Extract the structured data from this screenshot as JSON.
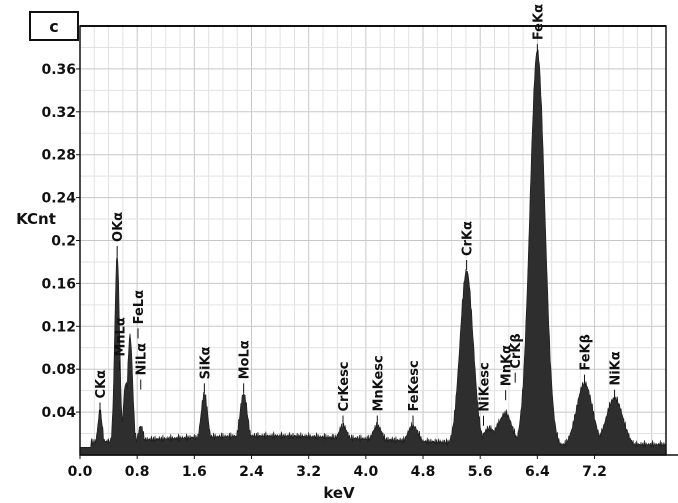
{
  "chart_data": {
    "type": "area",
    "panel_label": "c",
    "xlabel": "keV",
    "ylabel": "KCnt",
    "xlim": [
      0,
      8.2
    ],
    "ylim": [
      0,
      0.4
    ],
    "x_ticks": [
      "0.0",
      "0.8",
      "1.6",
      "2.4",
      "3.2",
      "4.0",
      "4.8",
      "5.6",
      "6.4",
      "7.2"
    ],
    "y_ticks": [
      "0.04",
      "0.08",
      "0.12",
      "0.16",
      "0.2",
      "0.24",
      "0.28",
      "0.32",
      "0.36"
    ],
    "grid": true,
    "series_color": "#2e2e2e",
    "peaks": [
      {
        "label": "CKα",
        "x": 0.28,
        "y": 0.034
      },
      {
        "label": "OKα",
        "x": 0.52,
        "y": 0.18
      },
      {
        "label": "FeLα",
        "x": 0.7,
        "y": 0.105
      },
      {
        "label": "MnLα",
        "x": 0.64,
        "y": 0.06
      },
      {
        "label": "NiLα",
        "x": 0.85,
        "y": 0.02
      },
      {
        "label": "SiKα",
        "x": 1.74,
        "y": 0.05
      },
      {
        "label": "MoLα",
        "x": 2.29,
        "y": 0.05
      },
      {
        "label": "CrKesc",
        "x": 3.68,
        "y": 0.02
      },
      {
        "label": "MnKesc",
        "x": 4.16,
        "y": 0.02
      },
      {
        "label": "FeKesc",
        "x": 4.66,
        "y": 0.02
      },
      {
        "label": "CrKα",
        "x": 5.41,
        "y": 0.165
      },
      {
        "label": "NiKesc",
        "x": 5.73,
        "y": 0.018
      },
      {
        "label": "CrKβ",
        "x": 5.95,
        "y": 0.032
      },
      {
        "label": "MnKα",
        "x": 5.9,
        "y": 0.025
      },
      {
        "label": "FeKα",
        "x": 6.4,
        "y": 0.37
      },
      {
        "label": "FeKβ",
        "x": 7.06,
        "y": 0.06
      },
      {
        "label": "NiKα",
        "x": 7.48,
        "y": 0.046
      }
    ],
    "background_level": 0.018
  }
}
